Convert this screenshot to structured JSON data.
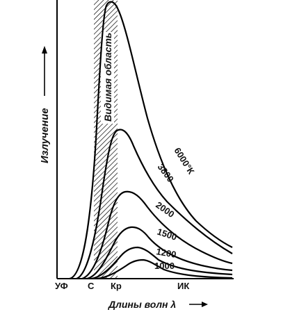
{
  "chart_data": {
    "type": "line",
    "ylabel": "Излучение",
    "xlabel": "Длины волн λ",
    "band_label": "Видимая область",
    "x_ticks": [
      "УФ",
      "С",
      "Кр",
      "ИК"
    ],
    "series": [
      {
        "name": "6000°К",
        "peak_x": 158,
        "peak_y": 4
      },
      {
        "name": "3800",
        "peak_x": 174,
        "peak_y": 186
      },
      {
        "name": "2000",
        "peak_x": 183,
        "peak_y": 275
      },
      {
        "name": "1500",
        "peak_x": 190,
        "peak_y": 326
      },
      {
        "name": "1200",
        "peak_x": 198,
        "peak_y": 355
      },
      {
        "name": "1000",
        "peak_x": 206,
        "peak_y": 373
      }
    ]
  }
}
